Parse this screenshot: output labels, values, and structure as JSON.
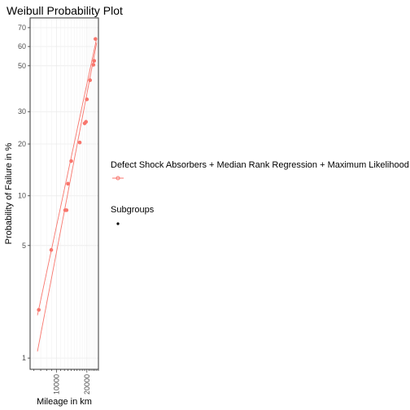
{
  "chart_data": {
    "type": "scatter",
    "title": "Weibull Probability Plot",
    "xlabel": "Mileage in km",
    "ylabel": "Probability of Failure in %",
    "x_scale": "log",
    "y_scale": "weibull",
    "xlim": [
      5500,
      26000
    ],
    "ylim": [
      0.85,
      75
    ],
    "x_ticks": [
      10000,
      20000
    ],
    "x_tick_labels": [
      "10000",
      "20000"
    ],
    "y_ticks": [
      1,
      5,
      10,
      20,
      30,
      50,
      60,
      70
    ],
    "y_tick_labels": [
      "1",
      "5",
      "10",
      "20",
      "30",
      "50",
      "60",
      "70"
    ],
    "grid": true,
    "legend_position": "right",
    "color": "#F8766D",
    "series": [
      {
        "name": "Defect Shock Absorbers + Median Rank Regression + Maximum Likelihood",
        "points": [
          {
            "x": 6700,
            "y": 2.0
          },
          {
            "x": 8900,
            "y": 4.7
          },
          {
            "x": 12200,
            "y": 8.2
          },
          {
            "x": 12600,
            "y": 8.2
          },
          {
            "x": 13000,
            "y": 11.8
          },
          {
            "x": 14000,
            "y": 16.0
          },
          {
            "x": 17000,
            "y": 20.4
          },
          {
            "x": 19000,
            "y": 26.0
          },
          {
            "x": 19600,
            "y": 26.5
          },
          {
            "x": 20000,
            "y": 34.7
          },
          {
            "x": 21500,
            "y": 43.0
          },
          {
            "x": 23200,
            "y": 50.5
          },
          {
            "x": 23600,
            "y": 52.5
          },
          {
            "x": 24300,
            "y": 64.0
          }
        ],
        "fit_lines": [
          [
            {
              "x": 6500,
              "y": 1.1
            },
            {
              "x": 25000,
              "y": 62.0
            }
          ],
          [
            {
              "x": 6500,
              "y": 1.85
            },
            {
              "x": 25000,
              "y": 64.5
            }
          ]
        ]
      }
    ],
    "legend": {
      "entries": [
        "Defect Shock Absorbers + Median Rank Regression + Maximum Likelihood"
      ],
      "subgroups_title": "Subgroups"
    }
  }
}
